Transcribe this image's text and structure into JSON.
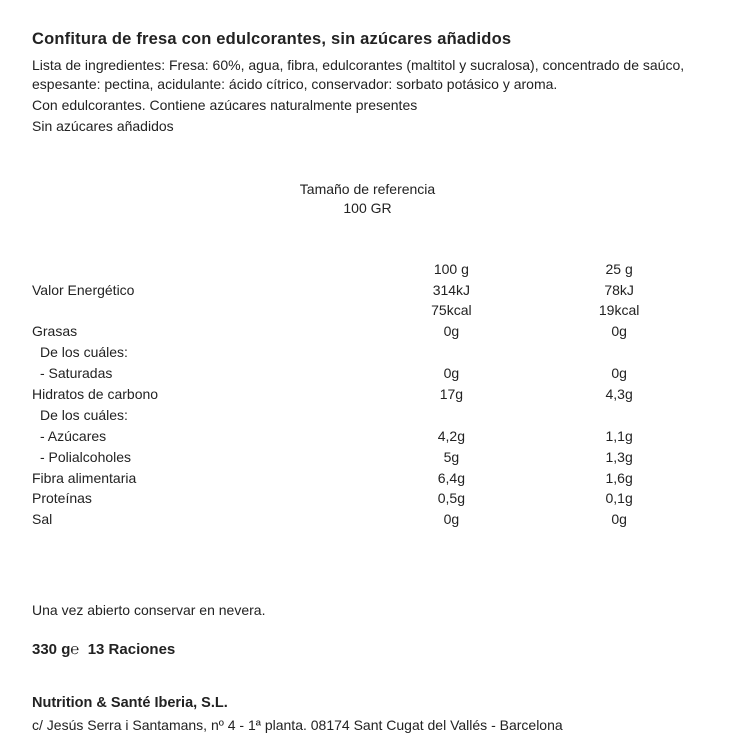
{
  "title": "Confitura de fresa con edulcorantes, sin azúcares añadidos",
  "ingredients": "Lista de ingredientes: Fresa: 60%, agua, fibra, edulcorantes (maltitol y sucralosa), concentrado de saúco, espesante: pectina, acidulante: ácido cítrico, conservador: sorbato potásico y aroma.",
  "note1": "Con edulcorantes. Contiene azúcares naturalmente presentes",
  "note2": "Sin azúcares añadidos",
  "reference_label": "Tamaño de referencia",
  "reference_value": "100 GR",
  "columns": {
    "c1": "100 g",
    "c2": "25 g"
  },
  "rows": [
    {
      "label": "Valor  Energético",
      "c1": "314kJ",
      "c2": "78kJ",
      "indent": 0
    },
    {
      "label": "",
      "c1": "75kcal",
      "c2": "19kcal",
      "indent": 0
    },
    {
      "label": "Grasas",
      "c1": "0g",
      "c2": "0g",
      "indent": 0
    },
    {
      "label": "De los cuáles:",
      "c1": "",
      "c2": "",
      "indent": 1
    },
    {
      "label": "-  Saturadas",
      "c1": "0g",
      "c2": "0g",
      "indent": 1
    },
    {
      "label": "Hidratos  de  carbono",
      "c1": "17g",
      "c2": "4,3g",
      "indent": 0
    },
    {
      "label": "De los cuáles:",
      "c1": "",
      "c2": "",
      "indent": 1
    },
    {
      "label": "-  Azúcares",
      "c1": "4,2g",
      "c2": "1,1g",
      "indent": 1
    },
    {
      "label": "-  Polialcoholes",
      "c1": "5g",
      "c2": "1,3g",
      "indent": 1
    },
    {
      "label": "Fibra  alimentaria",
      "c1": "6,4g",
      "c2": "1,6g",
      "indent": 0
    },
    {
      "label": "Proteínas",
      "c1": "0,5g",
      "c2": "0,1g",
      "indent": 0
    },
    {
      "label": "Sal",
      "c1": "0g",
      "c2": "0g",
      "indent": 0
    }
  ],
  "storage": "Una vez abierto conservar en nevera.",
  "net_weight": "330 g℮",
  "servings": "13 Raciones",
  "company": "Nutrition & Santé Iberia, S.L.",
  "address": "c/ Jesús Serra i Santamans, nº 4 - 1ª planta. 08174 Sant Cugat del Vallés - Barcelona"
}
